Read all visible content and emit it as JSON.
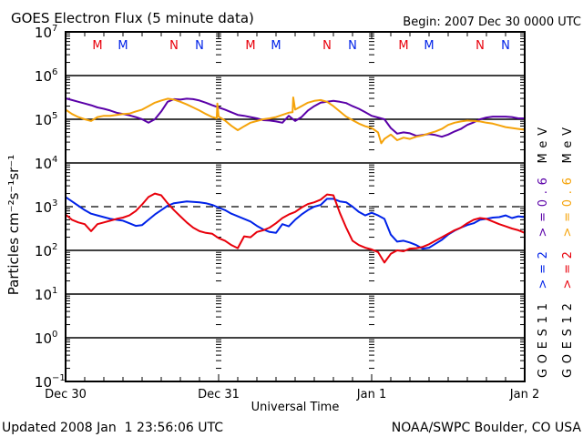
{
  "chart_data": {
    "type": "line",
    "title": "GOES Electron Flux (5 minute data)",
    "begin_label": "Begin: 2007 Dec 30 0000 UTC",
    "xlabel": "Universal Time",
    "ylabel": "Particles cm⁻²s⁻¹sr⁻¹",
    "yscale": "log",
    "ylim": [
      0.1,
      10000000
    ],
    "xlim_hours": [
      0,
      72
    ],
    "x_tick_labels": [
      {
        "hour": 0,
        "label": "Dec 30"
      },
      {
        "hour": 24,
        "label": "Dec 31"
      },
      {
        "hour": 48,
        "label": "Jan 1"
      },
      {
        "hour": 72,
        "label": "Jan 2"
      }
    ],
    "y_tick_labels": [
      {
        "exp": 7,
        "label": "10",
        "sup": "7"
      },
      {
        "exp": 6,
        "label": "10",
        "sup": "6"
      },
      {
        "exp": 5,
        "label": "10",
        "sup": "5"
      },
      {
        "exp": 4,
        "label": "10",
        "sup": "4"
      },
      {
        "exp": 3,
        "label": "10",
        "sup": "3"
      },
      {
        "exp": 2,
        "label": "10",
        "sup": "2"
      },
      {
        "exp": 1,
        "label": "10",
        "sup": "1"
      },
      {
        "exp": 0,
        "label": "10",
        "sup": "0"
      },
      {
        "exp": -1,
        "label": "10",
        "sup": "−1"
      }
    ],
    "solid_gridlines_exp": [
      6,
      5,
      4,
      2,
      1,
      0
    ],
    "dashed_threshold_exp": 3,
    "day_boundaries_hours": [
      24,
      48
    ],
    "markers": [
      {
        "hour": 5,
        "label": "M",
        "color": "#e8000b"
      },
      {
        "hour": 9,
        "label": "M",
        "color": "#0022e8"
      },
      {
        "hour": 17,
        "label": "N",
        "color": "#e8000b"
      },
      {
        "hour": 21,
        "label": "N",
        "color": "#0022e8"
      },
      {
        "hour": 29,
        "label": "M",
        "color": "#e8000b"
      },
      {
        "hour": 33,
        "label": "M",
        "color": "#0022e8"
      },
      {
        "hour": 41,
        "label": "N",
        "color": "#e8000b"
      },
      {
        "hour": 45,
        "label": "N",
        "color": "#0022e8"
      },
      {
        "hour": 53,
        "label": "M",
        "color": "#e8000b"
      },
      {
        "hour": 57,
        "label": "M",
        "color": "#0022e8"
      },
      {
        "hour": 65,
        "label": "N",
        "color": "#e8000b"
      },
      {
        "hour": 69,
        "label": "N",
        "color": "#0022e8"
      }
    ],
    "series": [
      {
        "name": "GOES11 >=0.6 MeV",
        "color": "#5a00a8",
        "x_hours": [
          0,
          1,
          2,
          3,
          4,
          5,
          6,
          7,
          8,
          9,
          10,
          11,
          12,
          13,
          14,
          15,
          16,
          17,
          18,
          19,
          20,
          21,
          22,
          23,
          24,
          25,
          26,
          27,
          28,
          29,
          30,
          31,
          32,
          33,
          34,
          35,
          36,
          37,
          38,
          39,
          40,
          41,
          42,
          43,
          44,
          45,
          46,
          47,
          48,
          49,
          50,
          51,
          52,
          53,
          54,
          55,
          56,
          57,
          58,
          59,
          60,
          61,
          62,
          63,
          64,
          65,
          66,
          67,
          68,
          69,
          70,
          71,
          72
        ],
        "log10_values": [
          5.48,
          5.44,
          5.4,
          5.36,
          5.32,
          5.27,
          5.24,
          5.2,
          5.15,
          5.12,
          5.09,
          5.05,
          5.0,
          4.92,
          5.0,
          5.18,
          5.4,
          5.46,
          5.45,
          5.47,
          5.46,
          5.43,
          5.38,
          5.32,
          5.27,
          5.22,
          5.16,
          5.1,
          5.08,
          5.05,
          5.02,
          4.98,
          4.97,
          4.95,
          4.92,
          5.08,
          4.96,
          5.05,
          5.2,
          5.3,
          5.38,
          5.4,
          5.42,
          5.4,
          5.37,
          5.3,
          5.24,
          5.16,
          5.08,
          5.04,
          5.0,
          4.8,
          4.67,
          4.7,
          4.68,
          4.62,
          4.64,
          4.66,
          4.64,
          4.6,
          4.65,
          4.72,
          4.78,
          4.87,
          4.93,
          5.0,
          5.04,
          5.06,
          5.06,
          5.06,
          5.05,
          5.02,
          5.02
        ]
      },
      {
        "name": "GOES12 >=0.6 MeV",
        "color": "#f5a30a",
        "x_hours": [
          0,
          1,
          2,
          3,
          4,
          5,
          6,
          7,
          8,
          9,
          10,
          11,
          12,
          13,
          14,
          15,
          16,
          17,
          18,
          19,
          20,
          21,
          22,
          23,
          23.7,
          23.8,
          24,
          25,
          26,
          27,
          28,
          29,
          30,
          31,
          32,
          33,
          34,
          35,
          35.6,
          35.7,
          36,
          37,
          38,
          39,
          40,
          41,
          42,
          43,
          44,
          45,
          46,
          47,
          48,
          49,
          49.5,
          50,
          51,
          52,
          53,
          54,
          55,
          56,
          57,
          58,
          59,
          60,
          61,
          62,
          63,
          64,
          65,
          66,
          67,
          68,
          69,
          70,
          71,
          72
        ],
        "log10_values": [
          5.22,
          5.12,
          5.05,
          5.0,
          4.96,
          5.05,
          5.08,
          5.08,
          5.1,
          5.12,
          5.13,
          5.18,
          5.22,
          5.3,
          5.38,
          5.43,
          5.47,
          5.45,
          5.4,
          5.34,
          5.27,
          5.2,
          5.12,
          5.05,
          5.02,
          5.36,
          5.06,
          4.97,
          4.85,
          4.75,
          4.84,
          4.92,
          4.96,
          5.0,
          5.02,
          5.05,
          5.1,
          5.15,
          5.16,
          5.5,
          5.22,
          5.3,
          5.38,
          5.42,
          5.44,
          5.4,
          5.3,
          5.18,
          5.06,
          4.98,
          4.9,
          4.84,
          4.8,
          4.7,
          4.45,
          4.55,
          4.65,
          4.52,
          4.58,
          4.55,
          4.6,
          4.63,
          4.68,
          4.72,
          4.78,
          4.87,
          4.92,
          4.95,
          4.97,
          4.96,
          4.95,
          4.92,
          4.9,
          4.86,
          4.82,
          4.8,
          4.78,
          4.76
        ]
      },
      {
        "name": "GOES11 >=2 MeV",
        "color": "#0022e8",
        "x_hours": [
          0,
          1,
          2,
          3,
          4,
          5,
          6,
          7,
          8,
          9,
          10,
          11,
          12,
          13,
          14,
          15,
          16,
          17,
          18,
          19,
          20,
          21,
          22,
          23,
          24,
          25,
          26,
          27,
          28,
          29,
          30,
          31,
          32,
          33,
          34,
          35,
          36,
          37,
          38,
          39,
          40,
          41,
          42,
          43,
          44,
          45,
          46,
          47,
          48,
          49,
          50,
          51,
          52,
          53,
          54,
          55,
          56,
          57,
          58,
          59,
          60,
          61,
          62,
          63,
          64,
          65,
          66,
          67,
          68,
          69,
          70,
          71,
          72
        ],
        "log10_values": [
          3.22,
          3.12,
          3.02,
          2.92,
          2.84,
          2.8,
          2.76,
          2.72,
          2.7,
          2.68,
          2.62,
          2.56,
          2.58,
          2.7,
          2.82,
          2.92,
          3.02,
          3.08,
          3.1,
          3.12,
          3.11,
          3.1,
          3.08,
          3.04,
          2.98,
          2.92,
          2.84,
          2.78,
          2.72,
          2.66,
          2.56,
          2.48,
          2.42,
          2.4,
          2.6,
          2.55,
          2.7,
          2.82,
          2.92,
          3.0,
          3.04,
          3.18,
          3.18,
          3.12,
          3.1,
          3.0,
          2.88,
          2.8,
          2.86,
          2.8,
          2.72,
          2.36,
          2.2,
          2.22,
          2.18,
          2.12,
          2.04,
          2.06,
          2.15,
          2.24,
          2.36,
          2.45,
          2.52,
          2.58,
          2.62,
          2.7,
          2.72,
          2.75,
          2.76,
          2.8,
          2.74,
          2.78,
          2.76
        ]
      },
      {
        "name": "GOES12 >=2 MeV",
        "color": "#e8000b",
        "x_hours": [
          0,
          1,
          2,
          3,
          4,
          5,
          6,
          7,
          8,
          9,
          10,
          11,
          12,
          13,
          14,
          15,
          16,
          17,
          18,
          19,
          20,
          21,
          22,
          23,
          24,
          25,
          26,
          27,
          28,
          29,
          30,
          31,
          32,
          33,
          34,
          35,
          36,
          37,
          38,
          39,
          40,
          41,
          42,
          43,
          44,
          45,
          46,
          47,
          48,
          49,
          50,
          51,
          52,
          53,
          54,
          55,
          56,
          57,
          58,
          59,
          60,
          61,
          62,
          63,
          64,
          65,
          66,
          67,
          68,
          69,
          70,
          71,
          72
        ],
        "log10_values": [
          2.82,
          2.7,
          2.64,
          2.6,
          2.44,
          2.6,
          2.64,
          2.68,
          2.72,
          2.75,
          2.8,
          2.9,
          3.05,
          3.22,
          3.3,
          3.26,
          3.08,
          2.92,
          2.78,
          2.64,
          2.52,
          2.44,
          2.4,
          2.38,
          2.28,
          2.22,
          2.12,
          2.05,
          2.32,
          2.3,
          2.42,
          2.46,
          2.52,
          2.62,
          2.74,
          2.82,
          2.88,
          2.98,
          3.06,
          3.1,
          3.16,
          3.28,
          3.26,
          2.86,
          2.52,
          2.22,
          2.12,
          2.06,
          2.02,
          1.96,
          1.72,
          1.92,
          2.0,
          1.98,
          2.04,
          2.05,
          2.08,
          2.14,
          2.22,
          2.3,
          2.38,
          2.46,
          2.52,
          2.62,
          2.7,
          2.74,
          2.72,
          2.66,
          2.6,
          2.55,
          2.5,
          2.46,
          2.4
        ]
      }
    ],
    "legend": {
      "placement": "right-vertical",
      "rows": [
        {
          "sat": "GOES11",
          "hi_label": ">=2",
          "hi_color": "#0022e8",
          "lo_label": ">=0.6",
          "lo_color": "#5a00a8",
          "unit": "MeV"
        },
        {
          "sat": "GOES12",
          "hi_label": ">=2",
          "hi_color": "#e8000b",
          "lo_label": ">=0.6",
          "lo_color": "#f5a30a",
          "unit": "MeV"
        }
      ]
    }
  },
  "footer": {
    "updated": "Updated 2008 Jan  1 23:56:06 UTC",
    "source": "NOAA/SWPC Boulder, CO USA"
  }
}
